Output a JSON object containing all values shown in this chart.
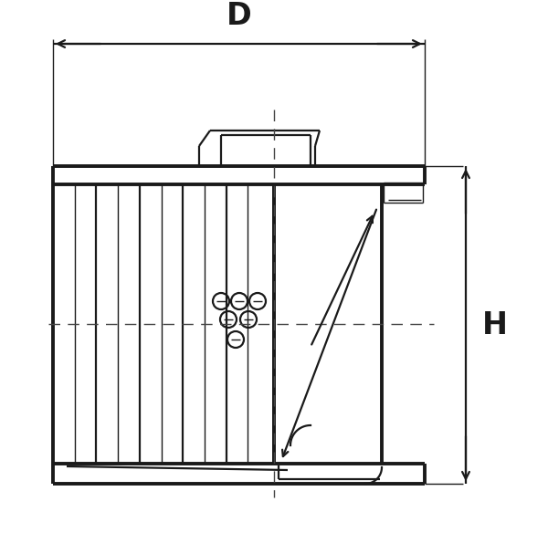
{
  "bg_color": "#ffffff",
  "line_color": "#1a1a1a",
  "lw_main": 1.6,
  "lw_thin": 1.0,
  "lw_thick": 2.8,
  "fig_width": 6.0,
  "fig_height": 5.84
}
